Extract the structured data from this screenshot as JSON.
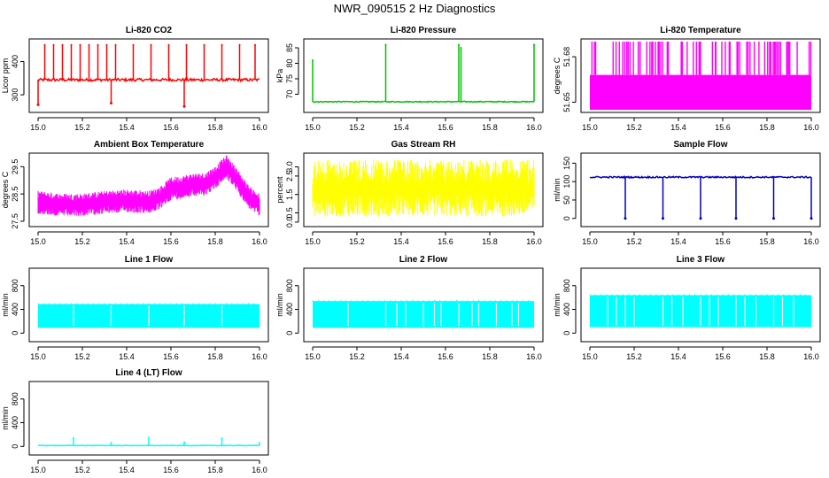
{
  "figure_title": "NWR_090515  2 Hz Diagnostics",
  "chart_data": [
    {
      "type": "line",
      "title": "Li-820 CO2",
      "xlabel": "",
      "ylabel": "Licor ppm",
      "xlim": [
        15.0,
        16.0
      ],
      "ylim": [
        255,
        460
      ],
      "x_ticks": [
        15.0,
        15.2,
        15.4,
        15.6,
        15.8,
        16.0
      ],
      "x_tick_labels": [
        "15.0",
        "15.2",
        "15.4",
        "15.6",
        "15.8",
        "16.0"
      ],
      "y_ticks": [
        300,
        400
      ],
      "y_tick_labels": [
        "300",
        "400"
      ],
      "color": "#ff0000",
      "series": [
        {
          "name": "CO2",
          "baseline": 345,
          "noise": 4,
          "spike_x": [
            15.03,
            15.07,
            15.11,
            15.15,
            15.19,
            15.23,
            15.27,
            15.31,
            15.35,
            15.43,
            15.51,
            15.59,
            15.67,
            15.75,
            15.83,
            15.91,
            15.98
          ],
          "spike_values": [
            450,
            450,
            450,
            450,
            450,
            450,
            450,
            450,
            450,
            450,
            450,
            450,
            450,
            450,
            450,
            450,
            450
          ],
          "dip_x": [
            15.0,
            15.33,
            15.66
          ],
          "dip_values": [
            270,
            275,
            265
          ]
        }
      ]
    },
    {
      "type": "line",
      "title": "Li-820 Pressure",
      "xlabel": "",
      "ylabel": "kPa",
      "xlim": [
        15.0,
        16.0
      ],
      "ylim": [
        65,
        87
      ],
      "x_ticks": [
        15.0,
        15.2,
        15.4,
        15.6,
        15.8,
        16.0
      ],
      "x_tick_labels": [
        "15.0",
        "15.2",
        "15.4",
        "15.6",
        "15.8",
        "16.0"
      ],
      "y_ticks": [
        70,
        75,
        80,
        85
      ],
      "y_tick_labels": [
        "70",
        "75",
        "80",
        "85"
      ],
      "color": "#00c000",
      "series": [
        {
          "name": "Pressure",
          "baseline": 67.6,
          "noise": 0.15,
          "spike_x": [
            15.0,
            15.33,
            15.66,
            15.67,
            16.0
          ],
          "spike_values": [
            81,
            86,
            86,
            85,
            86
          ],
          "dip_x": [],
          "dip_values": []
        }
      ]
    },
    {
      "type": "line",
      "title": "Li-820 Temperature",
      "xlabel": "",
      "ylabel": "degrees C",
      "xlim": [
        15.0,
        16.0
      ],
      "ylim": [
        51.645,
        51.69
      ],
      "x_ticks": [
        15.0,
        15.2,
        15.4,
        15.6,
        15.8,
        16.0
      ],
      "x_tick_labels": [
        "15.0",
        "15.2",
        "15.4",
        "15.6",
        "15.8",
        "16.0"
      ],
      "y_ticks": [
        51.65,
        51.68
      ],
      "y_tick_labels": [
        "51.65",
        "51.68"
      ],
      "color": "#ff00ff",
      "series": [
        {
          "name": "Temperature",
          "band_low": 51.645,
          "band_high": 51.668,
          "spike_top": 51.69,
          "spike_count": 70
        }
      ]
    },
    {
      "type": "line",
      "title": "Ambient Box Temperature",
      "xlabel": "",
      "ylabel": "degrees C",
      "xlim": [
        15.0,
        16.0
      ],
      "ylim": [
        27.4,
        29.9
      ],
      "x_ticks": [
        15.0,
        15.2,
        15.4,
        15.6,
        15.8,
        16.0
      ],
      "x_tick_labels": [
        "15.0",
        "15.2",
        "15.4",
        "15.6",
        "15.8",
        "16.0"
      ],
      "y_ticks": [
        27.5,
        28.5,
        29.5
      ],
      "y_tick_labels": [
        "27.5",
        "28.5",
        "29.5"
      ],
      "color": "#ff00ff",
      "series": [
        {
          "name": "Box Temp",
          "x": [
            15.0,
            15.1,
            15.2,
            15.3,
            15.4,
            15.5,
            15.55,
            15.6,
            15.65,
            15.7,
            15.75,
            15.8,
            15.85,
            15.9,
            15.95,
            16.0
          ],
          "values": [
            28.2,
            28.1,
            28.1,
            28.2,
            28.25,
            28.2,
            28.35,
            28.7,
            28.75,
            28.85,
            28.85,
            29.1,
            29.5,
            29.0,
            28.4,
            28.1
          ],
          "spread": 0.35
        }
      ]
    },
    {
      "type": "line",
      "title": "Gas Stream RH",
      "xlabel": "",
      "ylabel": "percent",
      "xlim": [
        15.0,
        16.0
      ],
      "ylim": [
        -0.1,
        3.6
      ],
      "x_ticks": [
        15.0,
        15.2,
        15.4,
        15.6,
        15.8,
        16.0
      ],
      "x_tick_labels": [
        "15.0",
        "15.2",
        "15.4",
        "15.6",
        "15.8",
        "16.0"
      ],
      "y_ticks": [
        0.0,
        0.5,
        1.5,
        2.5,
        3.0
      ],
      "y_tick_labels": [
        "0.0",
        "0.5",
        "1.5",
        "2.5",
        "3.0"
      ],
      "color": "#ffff00",
      "series": [
        {
          "name": "RH",
          "band_low": 0.3,
          "band_high": 3.4,
          "center": 1.8
        }
      ]
    },
    {
      "type": "line",
      "title": "Sample Flow",
      "xlabel": "",
      "ylabel": "ml/min",
      "xlim": [
        15.0,
        16.0
      ],
      "ylim": [
        -15,
        170
      ],
      "x_ticks": [
        15.0,
        15.2,
        15.4,
        15.6,
        15.8,
        16.0
      ],
      "x_tick_labels": [
        "15.0",
        "15.2",
        "15.4",
        "15.6",
        "15.8",
        "16.0"
      ],
      "y_ticks": [
        0,
        50,
        100,
        150
      ],
      "y_tick_labels": [
        "0",
        "50",
        "100",
        "150"
      ],
      "color": "#0000c0",
      "series": [
        {
          "name": "Flow",
          "baseline": 112,
          "noise": 2,
          "dip_x": [
            15.16,
            15.33,
            15.5,
            15.66,
            15.83,
            16.0
          ],
          "dip_values": [
            0,
            0,
            0,
            0,
            0,
            0
          ]
        }
      ]
    },
    {
      "type": "area",
      "title": "Line 1 Flow",
      "xlabel": "",
      "ylabel": "ml/min",
      "xlim": [
        15.0,
        16.0
      ],
      "ylim": [
        -100,
        1050
      ],
      "x_ticks": [
        15.0,
        15.2,
        15.4,
        15.6,
        15.8,
        16.0
      ],
      "x_tick_labels": [
        "15.0",
        "15.2",
        "15.4",
        "15.6",
        "15.8",
        "16.0"
      ],
      "y_ticks": [
        0,
        400,
        800
      ],
      "y_tick_labels": [
        "0",
        "400",
        "800"
      ],
      "color": "#00ffff",
      "series": [
        {
          "name": "Line 1",
          "band_low": 90,
          "band_high": 490,
          "gap_x": [
            15.16,
            15.33,
            15.5,
            15.66,
            15.83
          ]
        }
      ]
    },
    {
      "type": "area",
      "title": "Line 2 Flow",
      "xlabel": "",
      "ylabel": "ml/min",
      "xlim": [
        15.0,
        16.0
      ],
      "ylim": [
        -100,
        1050
      ],
      "x_ticks": [
        15.0,
        15.2,
        15.4,
        15.6,
        15.8,
        16.0
      ],
      "x_tick_labels": [
        "15.0",
        "15.2",
        "15.4",
        "15.6",
        "15.8",
        "16.0"
      ],
      "y_ticks": [
        0,
        400,
        800
      ],
      "y_tick_labels": [
        "0",
        "400",
        "800"
      ],
      "color": "#00ffff",
      "series": [
        {
          "name": "Line 2",
          "band_low": 90,
          "band_high": 540,
          "gap_x": [
            15.16,
            15.33,
            15.38,
            15.42,
            15.5,
            15.55,
            15.58,
            15.66,
            15.72,
            15.75,
            15.83,
            15.9,
            15.93
          ]
        }
      ]
    },
    {
      "type": "area",
      "title": "Line 3 Flow",
      "xlabel": "",
      "ylabel": "ml/min",
      "xlim": [
        15.0,
        16.0
      ],
      "ylim": [
        -100,
        1050
      ],
      "x_ticks": [
        15.0,
        15.2,
        15.4,
        15.6,
        15.8,
        16.0
      ],
      "x_tick_labels": [
        "15.0",
        "15.2",
        "15.4",
        "15.6",
        "15.8",
        "16.0"
      ],
      "y_ticks": [
        0,
        400,
        800
      ],
      "y_tick_labels": [
        "0",
        "400",
        "800"
      ],
      "color": "#00ffff",
      "series": [
        {
          "name": "Line 3",
          "band_low": 100,
          "band_high": 640,
          "gap_x": [
            15.08,
            15.12,
            15.16,
            15.2,
            15.33,
            15.37,
            15.42,
            15.5,
            15.54,
            15.58,
            15.66,
            15.7,
            15.75,
            15.83,
            15.87,
            15.92
          ]
        }
      ]
    },
    {
      "type": "line",
      "title": "Line 4 (LT) Flow",
      "xlabel": "",
      "ylabel": "ml/min",
      "xlim": [
        15.0,
        16.0
      ],
      "ylim": [
        -100,
        1050
      ],
      "x_ticks": [
        15.0,
        15.2,
        15.4,
        15.6,
        15.8,
        16.0
      ],
      "x_tick_labels": [
        "15.0",
        "15.2",
        "15.4",
        "15.6",
        "15.8",
        "16.0"
      ],
      "y_ticks": [
        0,
        400,
        800
      ],
      "y_tick_labels": [
        "0",
        "400",
        "800"
      ],
      "color": "#00ffff",
      "series": [
        {
          "name": "Line 4",
          "baseline": 15,
          "noise": 4,
          "spike_x": [
            15.16,
            15.33,
            15.5,
            15.66,
            15.83,
            16.0
          ],
          "spike_values": [
            140,
            60,
            150,
            70,
            140,
            60
          ],
          "dip_x": [],
          "dip_values": []
        }
      ]
    }
  ]
}
